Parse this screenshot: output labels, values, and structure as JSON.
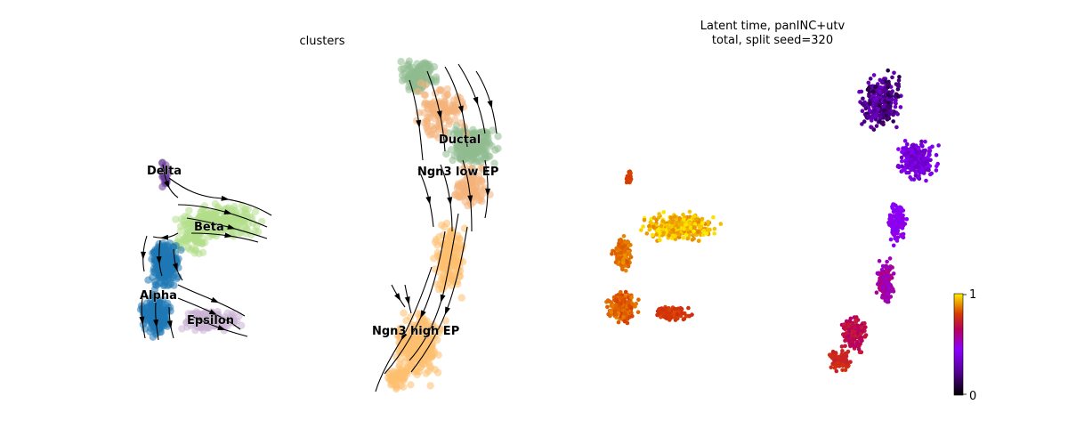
{
  "chart_data": [
    {
      "type": "scatter",
      "title": "clusters",
      "xlabel": "",
      "ylabel": "",
      "grid": false,
      "legend": "on data",
      "clusters": [
        {
          "name": "Delta",
          "color": "#6a3d9a"
        },
        {
          "name": "Beta",
          "color": "#b2df8a"
        },
        {
          "name": "Alpha",
          "color": "#1f78b4"
        },
        {
          "name": "Epsilon",
          "color": "#cab2d6"
        },
        {
          "name": "Ductal",
          "color": "#8fbc8f"
        },
        {
          "name": "Ngn3 low EP",
          "color": "#f4b27a"
        },
        {
          "name": "Ngn3 high EP",
          "color": "#fdbf6f"
        }
      ],
      "overlay": "velocity streamlines"
    },
    {
      "type": "scatter",
      "title_line1": "Latent time, panINC+utv",
      "title_line2": "total, split seed=320",
      "xlabel": "",
      "ylabel": "",
      "grid": false,
      "colorbar": {
        "min_label": "0",
        "max_label": "1",
        "colormap": "gnuplot",
        "range": [
          0,
          1
        ]
      }
    }
  ]
}
